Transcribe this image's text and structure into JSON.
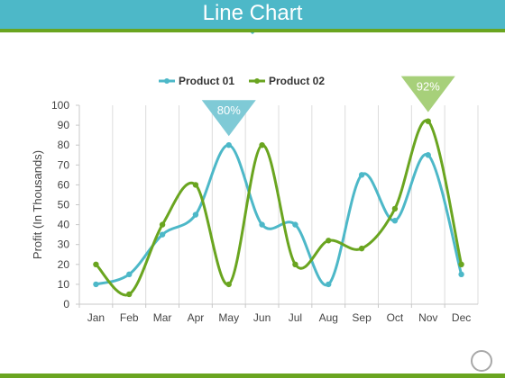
{
  "slide": {
    "title": "Line Chart"
  },
  "colors": {
    "header": "#4db8c8",
    "accent_rule": "#6aa520",
    "product01": "#4db8c8",
    "product02": "#6aa520"
  },
  "chart_data": {
    "type": "line",
    "smooth": true,
    "title": "",
    "xlabel": "",
    "ylabel": "Profit (In Thousands)",
    "ylim": [
      0,
      100
    ],
    "yticks": [
      0,
      10,
      20,
      30,
      40,
      50,
      60,
      70,
      80,
      90,
      100
    ],
    "grid": "vertical",
    "legend_position": "top-center",
    "categories": [
      "Jan",
      "Feb",
      "Mar",
      "Apr",
      "May",
      "Jun",
      "Jul",
      "Aug",
      "Sep",
      "Oct",
      "Nov",
      "Dec"
    ],
    "series": [
      {
        "name": "Product 01",
        "color": "#4db8c8",
        "values": [
          10,
          15,
          35,
          45,
          80,
          40,
          40,
          10,
          65,
          42,
          75,
          15
        ]
      },
      {
        "name": "Product 02",
        "color": "#6aa520",
        "values": [
          20,
          5,
          40,
          60,
          10,
          80,
          20,
          32,
          28,
          48,
          92,
          20
        ]
      }
    ],
    "callouts": [
      {
        "text": "80%",
        "category": "May",
        "series": "Product 01",
        "color": "#7fcad6"
      },
      {
        "text": "92%",
        "category": "Nov",
        "series": "Product 02",
        "color": "#a7d07a"
      }
    ]
  }
}
